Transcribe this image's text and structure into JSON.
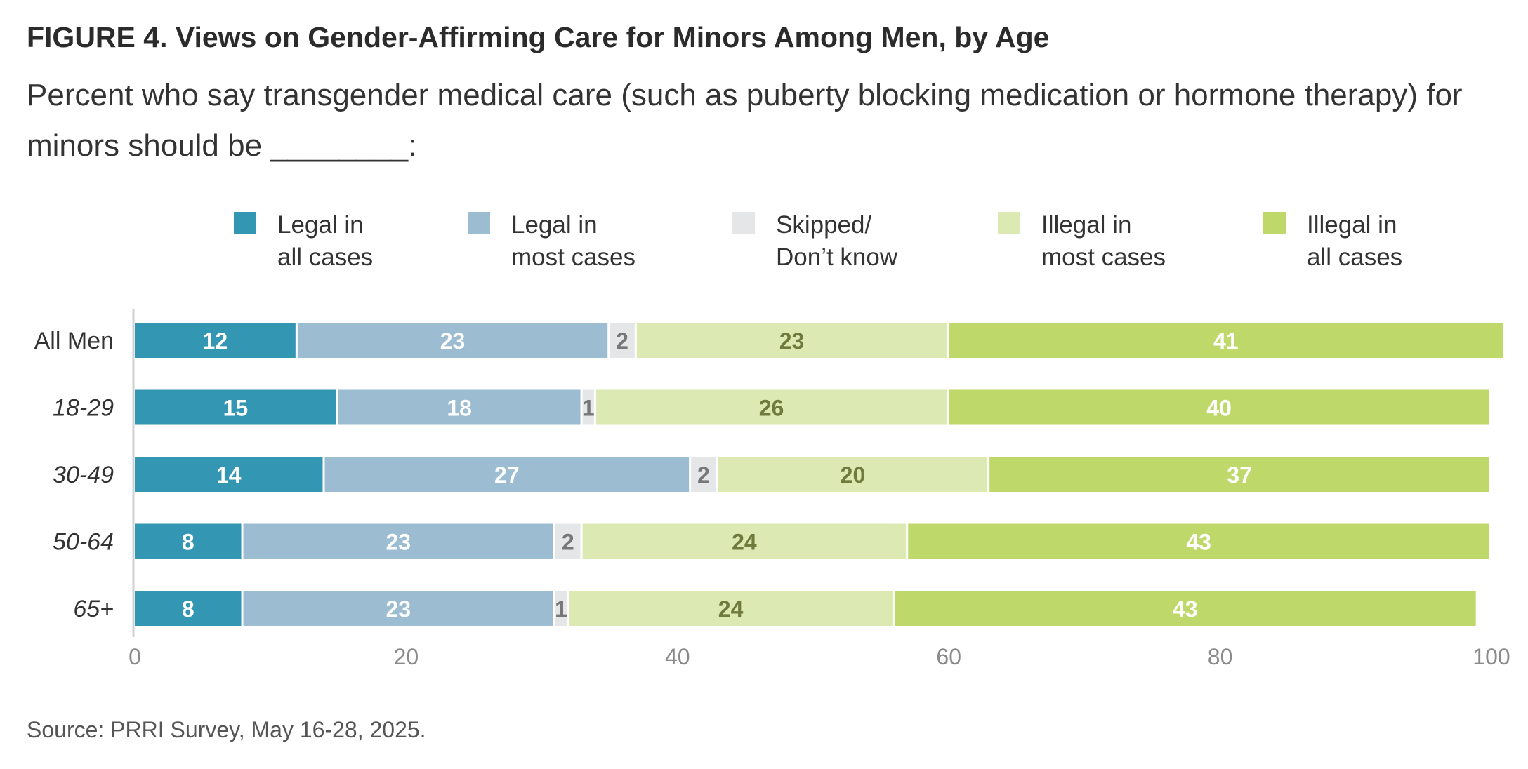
{
  "figure": {
    "title": "FIGURE 4.  Views on Gender-Affirming Care for Minors Among Men, by Age",
    "subtitle": "Percent who say transgender medical care (such as puberty blocking medication or hormone therapy) for minors should be ________:",
    "source": "Source: PRRI Survey, May 16-28, 2025."
  },
  "legend": [
    {
      "label": "Legal in\nall cases",
      "color": "#3396b3"
    },
    {
      "label": "Legal in\nmost cases",
      "color": "#9cbdd1"
    },
    {
      "label": "Skipped/\nDon’t know",
      "color": "#e5e6e8"
    },
    {
      "label": "Illegal in\nmost cases",
      "color": "#dde9b3"
    },
    {
      "label": "Illegal in\nall cases",
      "color": "#bed86a"
    }
  ],
  "chart_data": {
    "type": "bar",
    "orientation": "horizontal",
    "stacked": true,
    "title": "FIGURE 4.  Views on Gender-Affirming Care for Minors Among Men, by Age",
    "categories": [
      "All Men",
      "18-29",
      "30-49",
      "50-64",
      "65+"
    ],
    "categories_italic": [
      false,
      true,
      true,
      true,
      true
    ],
    "series": [
      {
        "name": "Legal in all cases",
        "color": "#3396b3",
        "label_color": "#ffffff",
        "values": [
          12,
          15,
          14,
          8,
          8
        ]
      },
      {
        "name": "Legal in most cases",
        "color": "#9cbdd1",
        "label_color": "#ffffff",
        "values": [
          23,
          18,
          27,
          23,
          23
        ]
      },
      {
        "name": "Skipped/Don’t know",
        "color": "#e5e6e8",
        "label_color": "#777777",
        "values": [
          2,
          1,
          2,
          2,
          1
        ]
      },
      {
        "name": "Illegal in most cases",
        "color": "#dde9b3",
        "label_color": "#6f7a3d",
        "values": [
          23,
          26,
          20,
          24,
          24
        ]
      },
      {
        "name": "Illegal in all cases",
        "color": "#bed86a",
        "label_color": "#ffffff",
        "values": [
          41,
          40,
          37,
          43,
          43
        ]
      }
    ],
    "xlim": [
      0,
      100
    ],
    "xticks": [
      0,
      20,
      40,
      60,
      80,
      100
    ],
    "grid": false,
    "legend_position": "top"
  }
}
